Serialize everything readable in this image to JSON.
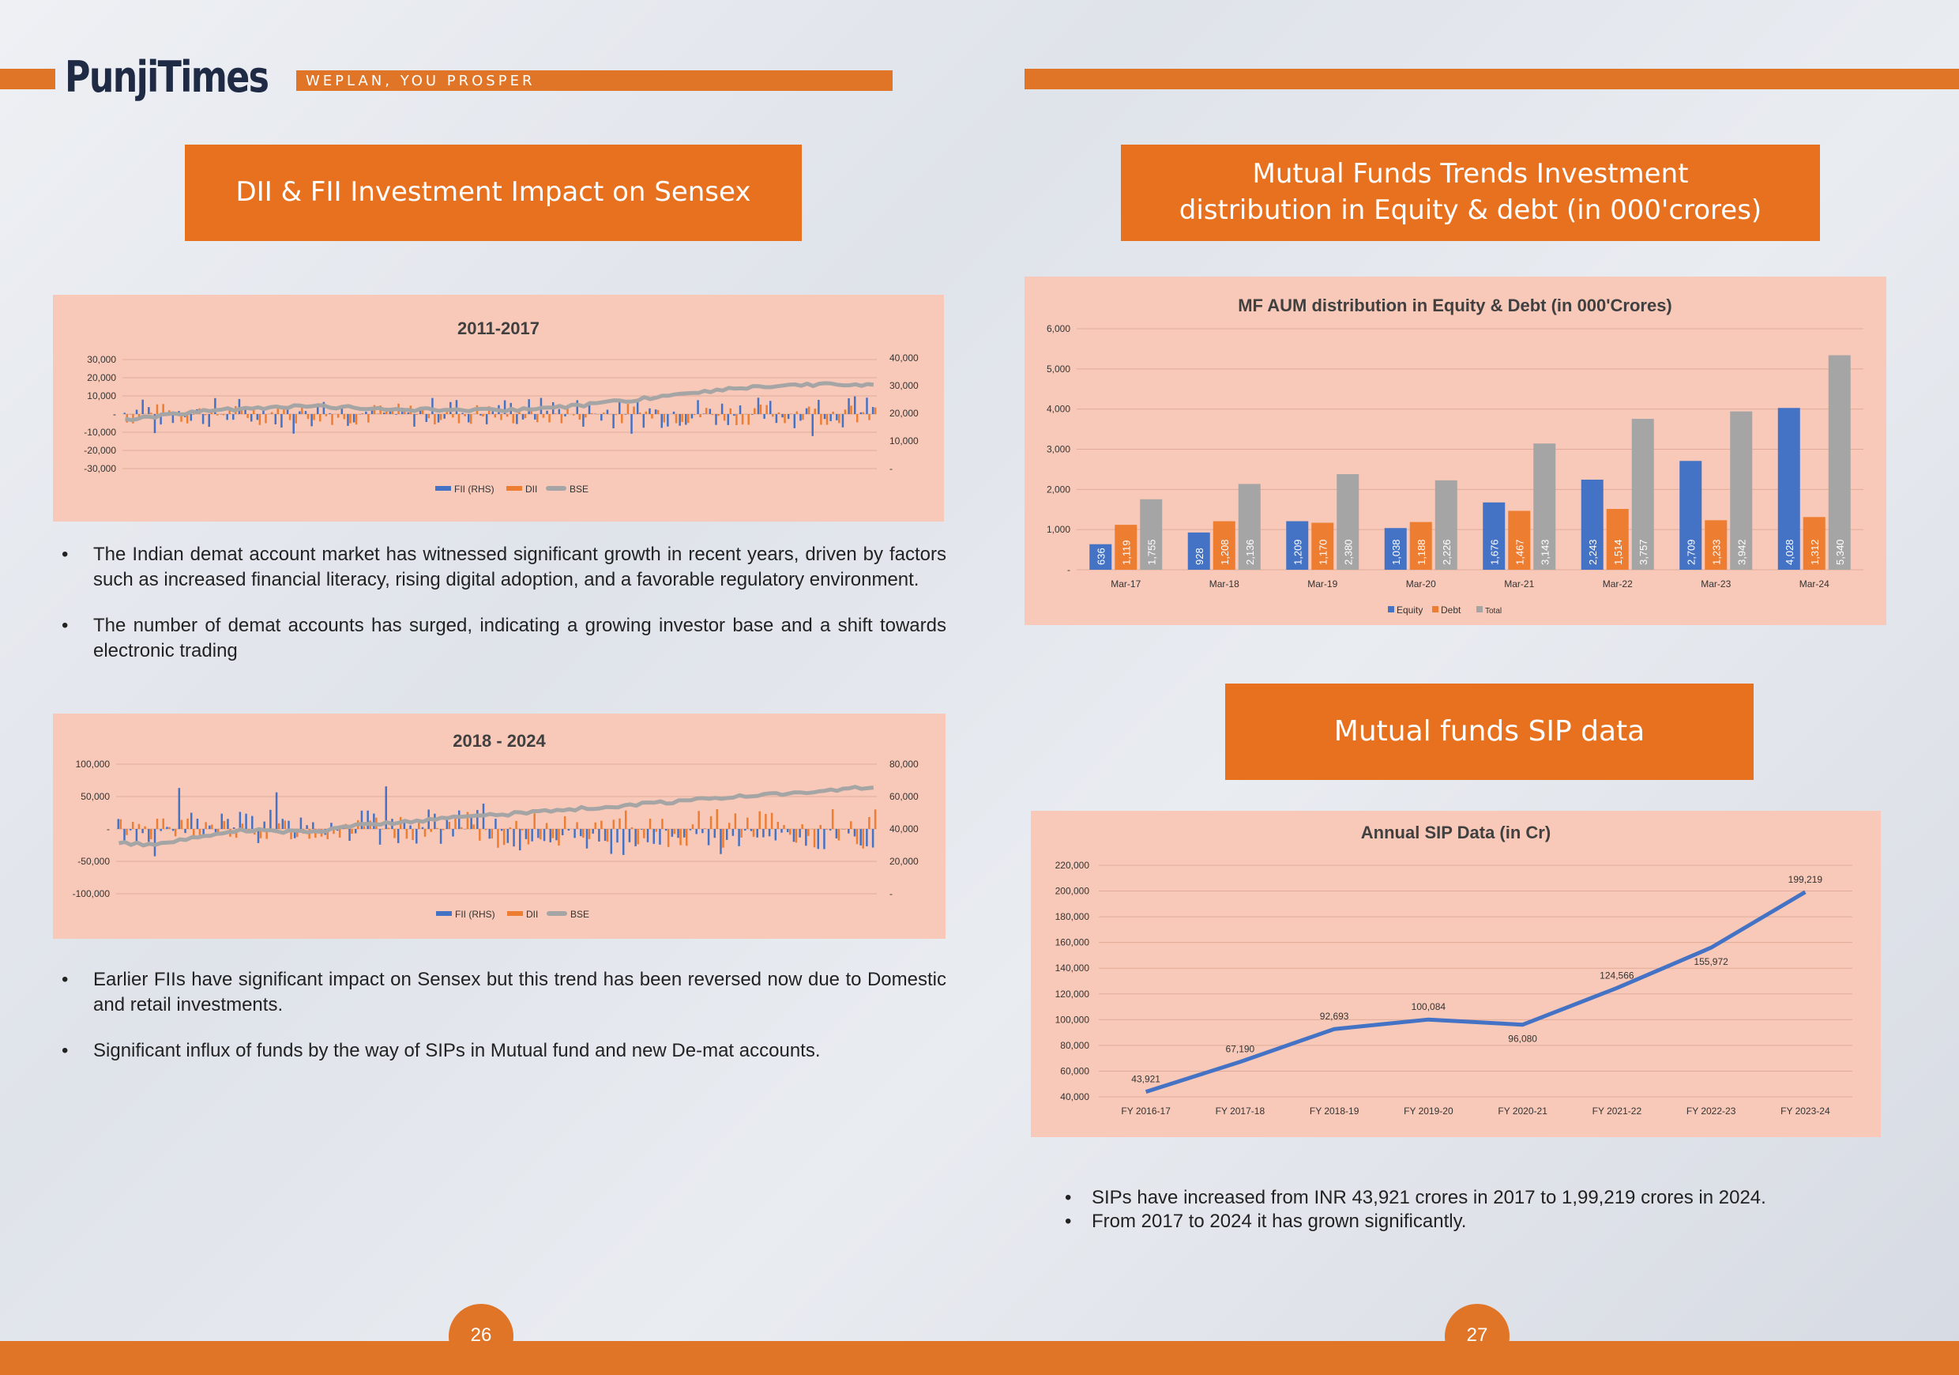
{
  "header": {
    "brand": "PunjiTimes",
    "tagline": "WEPLAN, YOU PROSPER"
  },
  "left": {
    "section_title": "DII & FII Investment Impact on Sensex",
    "bullets_top": [
      "The Indian demat account market has witnessed  significant growth in recent years, driven by factors such as increased financial literacy, rising digital adoption, and a favorable regulatory environment.",
      "The number of demat accounts has surged, indicating a growing investor base and a shift towards electronic trading"
    ],
    "bullets_bottom": [
      "Earlier FIIs have significant impact on Sensex but this trend has been reversed now due to Domestic and retail investments.",
      "Significant influx of funds by the way of SIPs in Mutual fund and new De-mat accounts."
    ]
  },
  "right": {
    "section_title_1": "Mutual Funds  Trends Investment",
    "section_title_2": "distribution in Equity & debt  (in 000'crores)",
    "sip_title": "Mutual funds SIP data",
    "bullets": [
      "SIPs have increased from INR 43,921 crores in 2017 to 1,99,219 crores in 2024.",
      "From 2017 to 2024 it has grown significantly."
    ]
  },
  "pages": {
    "left": "26",
    "right": "27"
  },
  "colors": {
    "accent": "#e07427",
    "panel": "#f8c9b8",
    "equity": "#4472c4",
    "debt": "#ed7d31",
    "total": "#a5a5a5"
  },
  "chart_data": [
    {
      "type": "bar",
      "title": "2011-2017",
      "left_axis_ticks": [
        "30,000",
        "20,000",
        "10,000",
        "-",
        "-10,000",
        "-20,000",
        "-30,000"
      ],
      "right_axis_ticks": [
        "40,000",
        "30,000",
        "20,000",
        "10,000",
        "-"
      ],
      "legend": [
        "FII (RHS)",
        "DII",
        "BSE"
      ],
      "ylim": [
        -30000,
        30000
      ],
      "y2lim": [
        0,
        40000
      ]
    },
    {
      "type": "bar",
      "title": "2018 - 2024",
      "left_axis_ticks": [
        "100,000",
        "50,000",
        "-",
        "-50,000",
        "-100,000"
      ],
      "right_axis_ticks": [
        "80,000",
        "60,000",
        "40,000",
        "20,000",
        "-"
      ],
      "legend": [
        "FII (RHS)",
        "DII",
        "BSE"
      ],
      "ylim": [
        -100000,
        100000
      ],
      "y2lim": [
        0,
        80000
      ]
    },
    {
      "type": "bar",
      "title": "MF AUM distribution in Equity & Debt (in 000'Crores)",
      "categories": [
        "Mar-17",
        "Mar-18",
        "Mar-19",
        "Mar-20",
        "Mar-21",
        "Mar-22",
        "Mar-23",
        "Mar-24"
      ],
      "series": [
        {
          "name": "Equity",
          "values": [
            636,
            928,
            1209,
            1038,
            1676,
            2243,
            2709,
            4028
          ]
        },
        {
          "name": "Debt",
          "values": [
            1119,
            1208,
            1170,
            1188,
            1467,
            1514,
            1233,
            1312
          ]
        },
        {
          "name": "Total",
          "values": [
            1755,
            2136,
            2380,
            2226,
            3143,
            3757,
            3942,
            5340
          ]
        }
      ],
      "labels": [
        [
          "636",
          "1,119",
          "1,755"
        ],
        [
          "928",
          "1,208",
          "2,136"
        ],
        [
          "1,209",
          "1,170",
          "2,380"
        ],
        [
          "1,038",
          "1,188",
          "2,226"
        ],
        [
          "1,676",
          "1,467",
          "3,143"
        ],
        [
          "2,243",
          "1,514",
          "3,757"
        ],
        [
          "2,709",
          "1,233",
          "3,942"
        ],
        [
          "4,028",
          "1,312",
          "5,340"
        ]
      ],
      "yticks": [
        "6,000",
        "5,000",
        "4,000",
        "3,000",
        "2,000",
        "1,000",
        "-"
      ],
      "ylim": [
        0,
        6000
      ]
    },
    {
      "type": "line",
      "title": "Annual SIP Data (in Cr)",
      "categories": [
        "FY 2016-17",
        "FY 2017-18",
        "FY 2018-19",
        "FY 2019-20",
        "FY 2020-21",
        "FY 2021-22",
        "FY 2022-23",
        "FY 2023-24"
      ],
      "values": [
        43921,
        67190,
        92693,
        100084,
        96080,
        124566,
        155972,
        199219
      ],
      "value_labels": [
        "43,921",
        "67,190",
        "92,693",
        "100,084",
        "96,080",
        "124,566",
        "155,972",
        "199,219"
      ],
      "yticks": [
        "220,000",
        "200,000",
        "180,000",
        "160,000",
        "140,000",
        "120,000",
        "100,000",
        "80,000",
        "60,000",
        "40,000"
      ],
      "ylim": [
        40000,
        220000
      ]
    }
  ]
}
